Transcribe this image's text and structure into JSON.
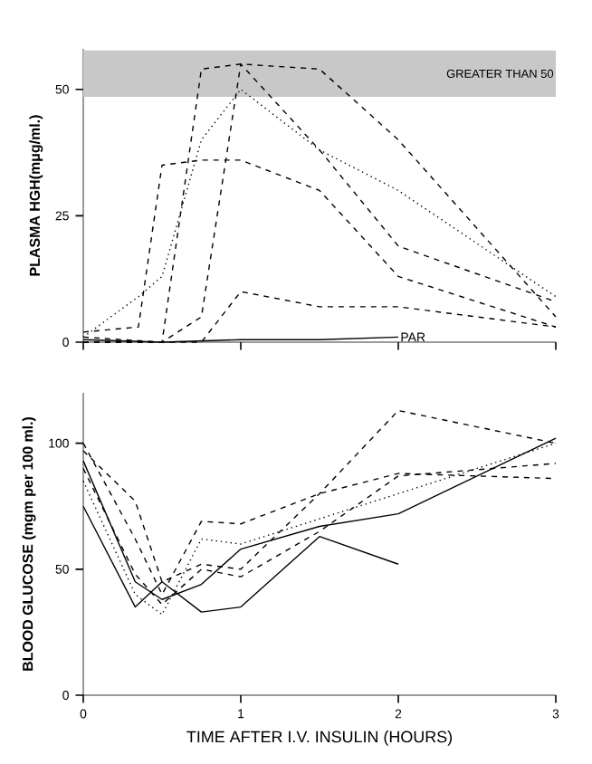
{
  "chart_data": [
    {
      "type": "line",
      "ylabel": "PLASMA HGH(mμg/ml.)",
      "xlim": [
        0,
        3
      ],
      "ylim": [
        0,
        58
      ],
      "xticks": [
        0,
        1,
        2,
        3
      ],
      "yticks": [
        0,
        25,
        50
      ],
      "tick_labels": "y",
      "bands": [
        {
          "axis": "y",
          "from": 48.5,
          "to": 57.7,
          "label": "GREATER THAN 50",
          "color": "#c8c8c8"
        }
      ],
      "series": [
        {
          "color": "#000000",
          "line_style": "dashed",
          "x": [
            0,
            0.35,
            0.5,
            0.75,
            1,
            1.5,
            2,
            3
          ],
          "values": [
            2,
            3,
            35,
            36,
            36,
            30,
            13,
            3
          ]
        },
        {
          "color": "#000000",
          "line_style": "dashed",
          "x": [
            0,
            0.5,
            0.75,
            1,
            1.5,
            2,
            3
          ],
          "values": [
            1,
            0,
            54,
            55,
            54,
            40,
            5
          ]
        },
        {
          "color": "#000000",
          "line_style": "dotted",
          "x": [
            0,
            0.35,
            0.5,
            0.75,
            1,
            1.5,
            2,
            3
          ],
          "values": [
            1,
            9,
            13,
            40,
            50,
            38,
            30,
            9
          ]
        },
        {
          "color": "#000000",
          "line_style": "dashed",
          "x": [
            0,
            0.5,
            0.75,
            1,
            1.5,
            2,
            3
          ],
          "values": [
            0,
            0,
            5,
            55,
            38,
            19,
            8
          ]
        },
        {
          "color": "#000000",
          "line_style": "dashed",
          "x": [
            0,
            0.5,
            0.75,
            1,
            1.5,
            2,
            3
          ],
          "values": [
            0,
            0,
            0,
            10,
            7,
            7,
            3
          ]
        },
        {
          "name": "PAR",
          "color": "#000000",
          "line_style": "solid",
          "x": [
            0,
            0.5,
            1,
            1.5,
            2
          ],
          "values": [
            0.5,
            0,
            0.5,
            0.5,
            1
          ]
        }
      ]
    },
    {
      "type": "line",
      "xlabel": "TIME AFTER I.V. INSULIN (HOURS)",
      "ylabel": "BLOOD GLUCOSE (mgm per 100 ml.)",
      "xlim": [
        0,
        3
      ],
      "ylim": [
        0,
        120
      ],
      "xticks": [
        0,
        1,
        2,
        3
      ],
      "yticks": [
        0,
        50,
        100
      ],
      "series": [
        {
          "color": "#000000",
          "line_style": "dashed",
          "x": [
            0,
            0.33,
            0.5,
            0.75,
            1,
            1.5,
            2,
            3
          ],
          "values": [
            97,
            77,
            45,
            52,
            50,
            80,
            113,
            100
          ]
        },
        {
          "color": "#000000",
          "line_style": "dashed",
          "x": [
            0,
            0.33,
            0.5,
            0.75,
            1,
            1.5,
            2,
            3
          ],
          "values": [
            100,
            62,
            40,
            69,
            68,
            80,
            88,
            86
          ]
        },
        {
          "color": "#000000",
          "line_style": "solid",
          "x": [
            0,
            0.33,
            0.5,
            0.75,
            1,
            1.5,
            2,
            3
          ],
          "values": [
            93,
            45,
            38,
            44,
            58,
            67,
            72,
            102
          ]
        },
        {
          "color": "#000000",
          "line_style": "dotted",
          "x": [
            0,
            0.33,
            0.5,
            0.75,
            1,
            1.5,
            2,
            3
          ],
          "values": [
            85,
            40,
            32,
            62,
            60,
            70,
            80,
            100
          ]
        },
        {
          "color": "#000000",
          "line_style": "solid",
          "x": [
            0,
            0.33,
            0.5,
            0.75,
            1,
            1.5,
            2
          ],
          "values": [
            75,
            35,
            45,
            33,
            35,
            63,
            52
          ]
        },
        {
          "color": "#000000",
          "line_style": "dashed",
          "x": [
            0,
            0.33,
            0.5,
            0.75,
            1,
            1.5,
            2,
            3
          ],
          "values": [
            90,
            48,
            36,
            50,
            47,
            65,
            87,
            92
          ]
        }
      ]
    }
  ]
}
